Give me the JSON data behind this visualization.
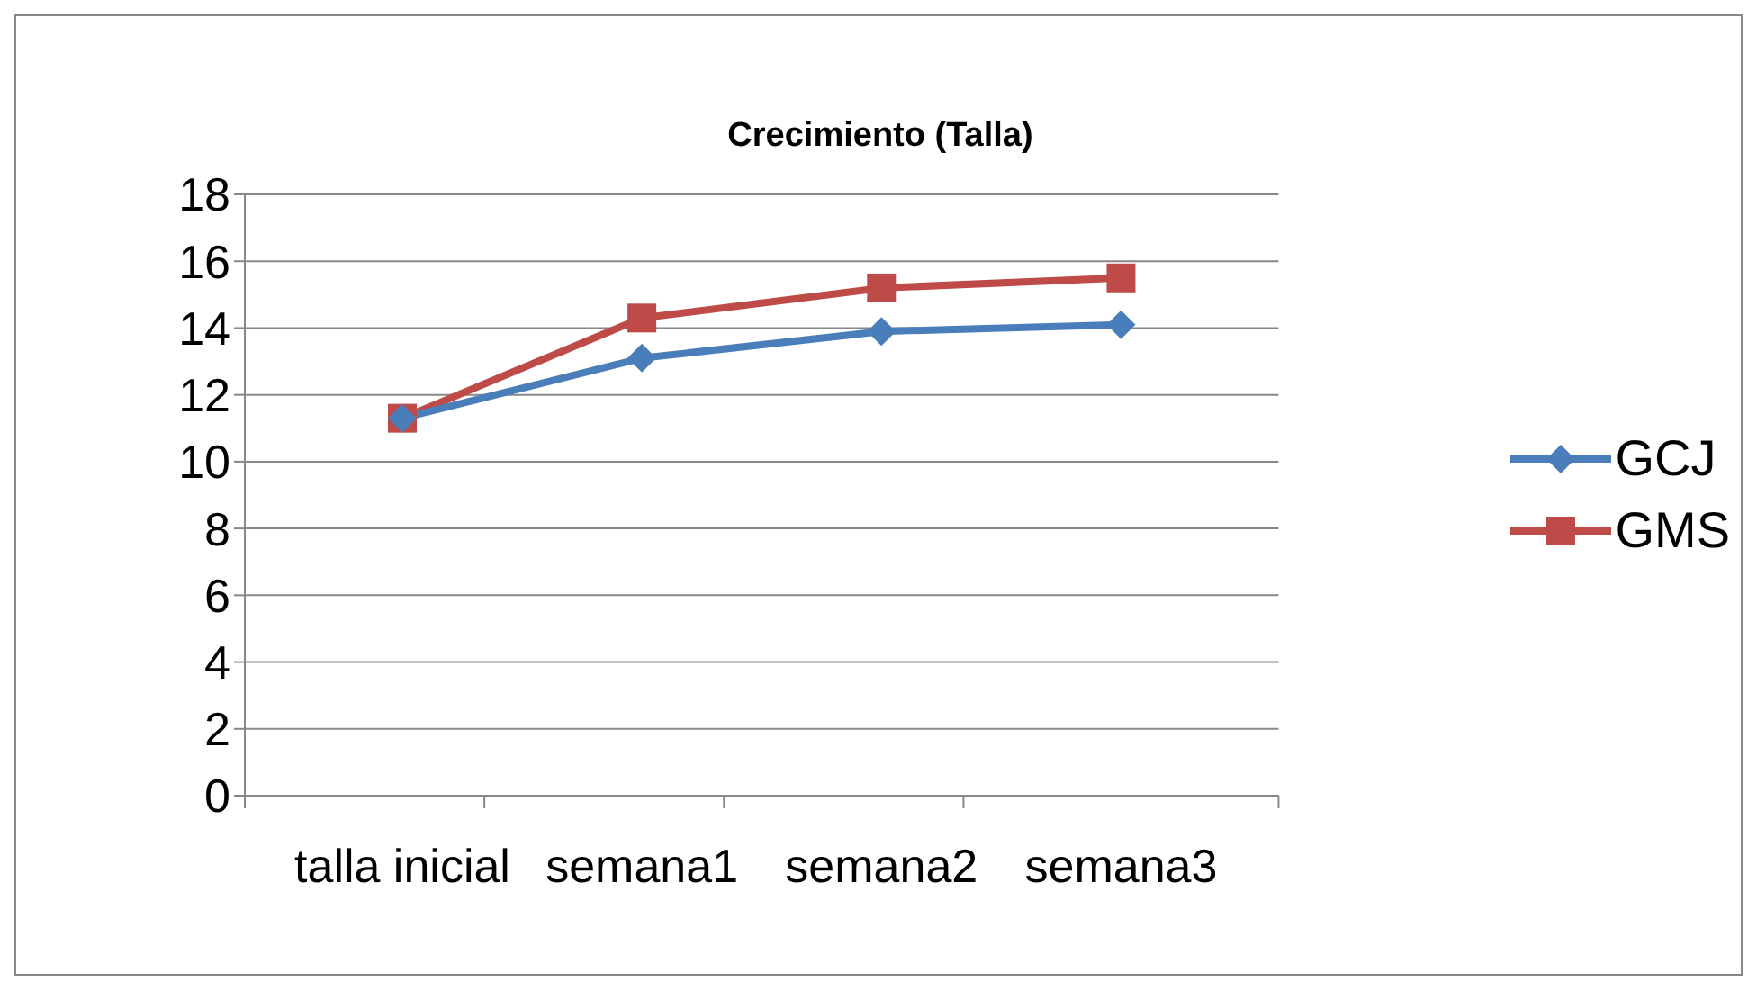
{
  "chart_data": {
    "type": "line",
    "title": "Crecimiento (Talla)",
    "categories": [
      "talla inicial",
      "semana1",
      "semana2",
      "semana3"
    ],
    "series": [
      {
        "name": "GCJ",
        "color": "#4a7ebb",
        "values": [
          11.3,
          13.1,
          13.9,
          14.1
        ],
        "marker": "diamond"
      },
      {
        "name": "GMS",
        "color": "#be4b48",
        "values": [
          11.3,
          14.3,
          15.2,
          15.5
        ],
        "marker": "square"
      }
    ],
    "ylim": [
      0,
      18
    ],
    "yticks": [
      0,
      2,
      4,
      6,
      8,
      10,
      12,
      14,
      16,
      18
    ],
    "grid": "y",
    "legend": "right",
    "line_style": "solid"
  }
}
